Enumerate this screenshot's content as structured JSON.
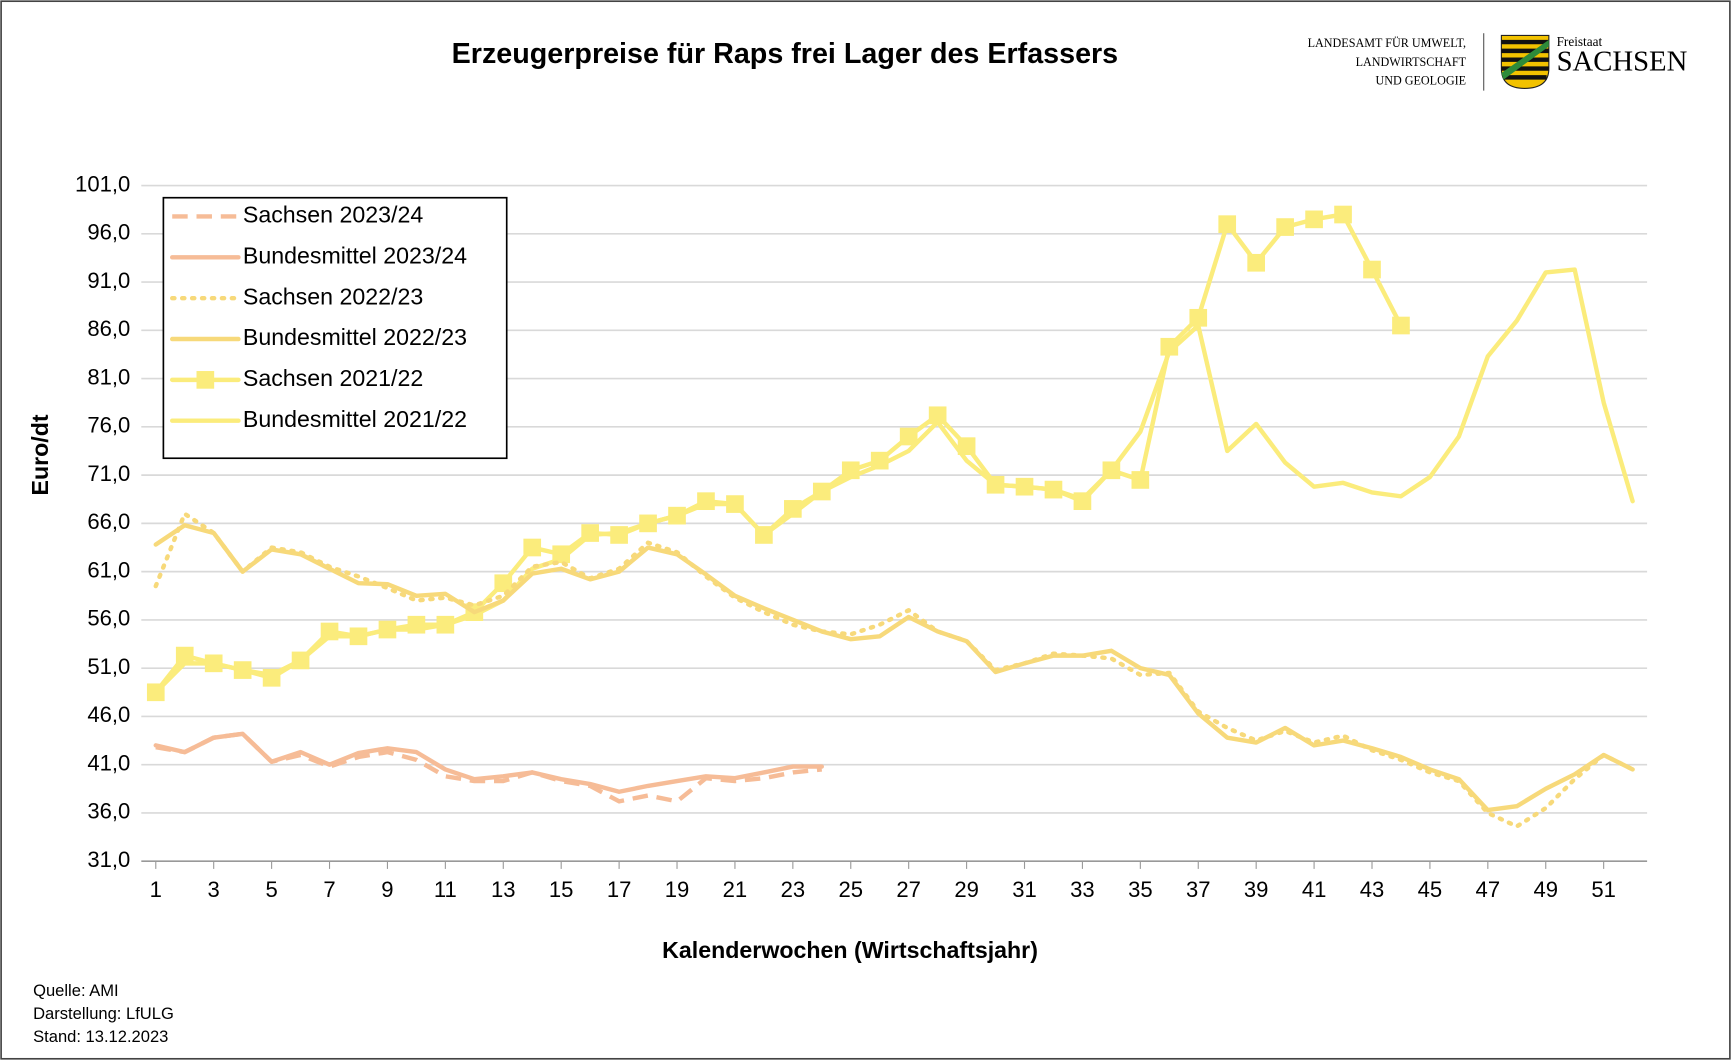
{
  "header": {
    "agency": [
      "LANDESAMT FÜR UMWELT,",
      "LANDWIRTSCHAFT",
      "UND GEOLOGIE"
    ],
    "state_small": "Freistaat",
    "state": "SACHSEN"
  },
  "chart_data": {
    "type": "line",
    "title": "Erzeugerpreise für Raps frei Lager des Erfassers",
    "x_label": "Kalenderwochen (Wirtschaftsjahr)",
    "y_label": "Euro/dt",
    "notes": [
      "Quelle: AMI",
      "Darstellung: LfULG",
      "Stand: 13.12.2023"
    ],
    "x": [
      1,
      2,
      3,
      4,
      5,
      6,
      7,
      8,
      9,
      10,
      11,
      12,
      13,
      14,
      15,
      16,
      17,
      18,
      19,
      20,
      21,
      22,
      23,
      24,
      25,
      26,
      27,
      28,
      29,
      30,
      31,
      32,
      33,
      34,
      35,
      36,
      37,
      38,
      39,
      40,
      41,
      42,
      43,
      44,
      45,
      46,
      47,
      48,
      49,
      50,
      51,
      52
    ],
    "xlim": [
      0.5,
      52.5
    ],
    "xticks": [
      1,
      3,
      5,
      7,
      9,
      11,
      13,
      15,
      17,
      19,
      21,
      23,
      25,
      27,
      29,
      31,
      33,
      35,
      37,
      39,
      41,
      43,
      45,
      47,
      49,
      51
    ],
    "ylim": [
      31,
      101
    ],
    "yticks": [
      {
        "value": 31,
        "label": "31,0"
      },
      {
        "value": 36,
        "label": "36,0"
      },
      {
        "value": 41,
        "label": "41,0"
      },
      {
        "value": 46,
        "label": "46,0"
      },
      {
        "value": 51,
        "label": "51,0"
      },
      {
        "value": 56,
        "label": "56,0"
      },
      {
        "value": 61,
        "label": "61,0"
      },
      {
        "value": 66,
        "label": "66,0"
      },
      {
        "value": 71,
        "label": "71,0"
      },
      {
        "value": 76,
        "label": "76,0"
      },
      {
        "value": 81,
        "label": "81,0"
      },
      {
        "value": 86,
        "label": "86,0"
      },
      {
        "value": 91,
        "label": "91,0"
      },
      {
        "value": 96,
        "label": "96,0"
      },
      {
        "value": {
          "value": 101,
          "label": "101,0"
        },
        "label": "101,0"
      }
    ],
    "grid": true,
    "legend": "top-left",
    "series": [
      {
        "name": "Sachsen 2023/24",
        "color": "#f6bc97",
        "dash": "dashed",
        "values": [
          42.8,
          42.3,
          43.8,
          44.2,
          41.3,
          42.0,
          40.8,
          41.8,
          42.3,
          41.5,
          39.8,
          39.3,
          39.3,
          40.2,
          39.3,
          38.8,
          37.2,
          37.8,
          37.2,
          39.6,
          39.3,
          39.6,
          40.2,
          40.5,
          null,
          null,
          null,
          null,
          null,
          null,
          null,
          null,
          null,
          null,
          null,
          null,
          null,
          null,
          null,
          null,
          null,
          null,
          null,
          null,
          null,
          null,
          null,
          null,
          null,
          null,
          null,
          null
        ]
      },
      {
        "name": "Bundesmittel 2023/24",
        "color": "#f6bc97",
        "dash": "solid",
        "values": [
          43.0,
          42.3,
          43.8,
          44.2,
          41.3,
          42.3,
          41.0,
          42.2,
          42.7,
          42.3,
          40.5,
          39.5,
          39.8,
          40.2,
          39.5,
          39.0,
          38.2,
          38.8,
          39.3,
          39.8,
          39.6,
          40.2,
          40.8,
          40.8,
          null,
          null,
          null,
          null,
          null,
          null,
          null,
          null,
          null,
          null,
          null,
          null,
          null,
          null,
          null,
          null,
          null,
          null,
          null,
          null,
          null,
          null,
          null,
          null,
          null,
          null,
          null,
          null
        ]
      },
      {
        "name": "Sachsen 2022/23",
        "color": "#f7d97a",
        "dash": "dotted",
        "values": [
          59.5,
          67.0,
          65.0,
          61.0,
          63.5,
          63.0,
          61.5,
          60.5,
          59.3,
          58.0,
          58.3,
          57.5,
          58.5,
          61.5,
          62.0,
          60.3,
          61.3,
          64.0,
          63.0,
          60.5,
          58.3,
          56.8,
          55.5,
          54.8,
          54.5,
          55.5,
          57.0,
          54.8,
          53.8,
          50.8,
          51.5,
          52.5,
          52.3,
          52.0,
          50.3,
          50.5,
          46.5,
          44.8,
          43.5,
          44.5,
          43.3,
          44.0,
          42.5,
          41.5,
          40.2,
          39.3,
          36.0,
          34.6,
          36.5,
          39.5,
          42.0,
          40.5
        ]
      },
      {
        "name": "Bundesmittel 2022/23",
        "color": "#f7d97a",
        "dash": "solid",
        "values": [
          63.8,
          65.8,
          65.0,
          61.0,
          63.3,
          62.8,
          61.3,
          59.8,
          59.7,
          58.5,
          58.7,
          56.8,
          58.0,
          60.8,
          61.3,
          60.2,
          61.0,
          63.5,
          62.8,
          60.7,
          58.5,
          57.2,
          56.0,
          54.8,
          54.0,
          54.3,
          56.3,
          54.8,
          53.8,
          50.6,
          51.5,
          52.3,
          52.3,
          52.8,
          51.0,
          50.3,
          46.3,
          43.8,
          43.3,
          44.8,
          43.0,
          43.5,
          42.7,
          41.8,
          40.5,
          39.5,
          36.3,
          36.7,
          38.5,
          40.0,
          42.0,
          40.5
        ]
      },
      {
        "name": "Sachsen 2021/22",
        "color": "#fbec7c",
        "dash": "solid",
        "marker": "square",
        "values": [
          48.5,
          52.3,
          51.5,
          50.8,
          50.0,
          51.8,
          54.8,
          54.3,
          55.0,
          55.5,
          55.5,
          56.8,
          59.8,
          63.5,
          62.8,
          65.0,
          64.8,
          66.0,
          66.8,
          68.3,
          68.0,
          64.8,
          67.5,
          69.3,
          71.5,
          72.5,
          75.0,
          77.2,
          74.0,
          70.0,
          69.8,
          69.5,
          68.3,
          71.5,
          70.5,
          84.3,
          87.3,
          97.0,
          93.0,
          96.7,
          97.5,
          98.0,
          92.3,
          86.5,
          null,
          null,
          null,
          null,
          null,
          null,
          null,
          null
        ]
      },
      {
        "name": "Bundesmittel 2021/22",
        "color": "#fbec7c",
        "dash": "solid",
        "values": [
          48.5,
          51.5,
          51.5,
          50.8,
          50.3,
          51.8,
          54.3,
          54.3,
          55.0,
          55.0,
          55.5,
          56.5,
          58.0,
          61.3,
          62.3,
          64.8,
          65.0,
          66.0,
          66.8,
          68.0,
          68.0,
          64.8,
          67.0,
          69.3,
          70.8,
          72.0,
          73.5,
          76.5,
          72.5,
          70.0,
          69.8,
          69.5,
          68.5,
          71.5,
          75.5,
          83.8,
          86.5,
          73.5,
          76.3,
          72.3,
          69.8,
          70.2,
          69.2,
          68.8,
          70.8,
          75.0,
          83.3,
          87.0,
          92.0,
          92.3,
          78.5,
          68.3
        ]
      }
    ]
  }
}
